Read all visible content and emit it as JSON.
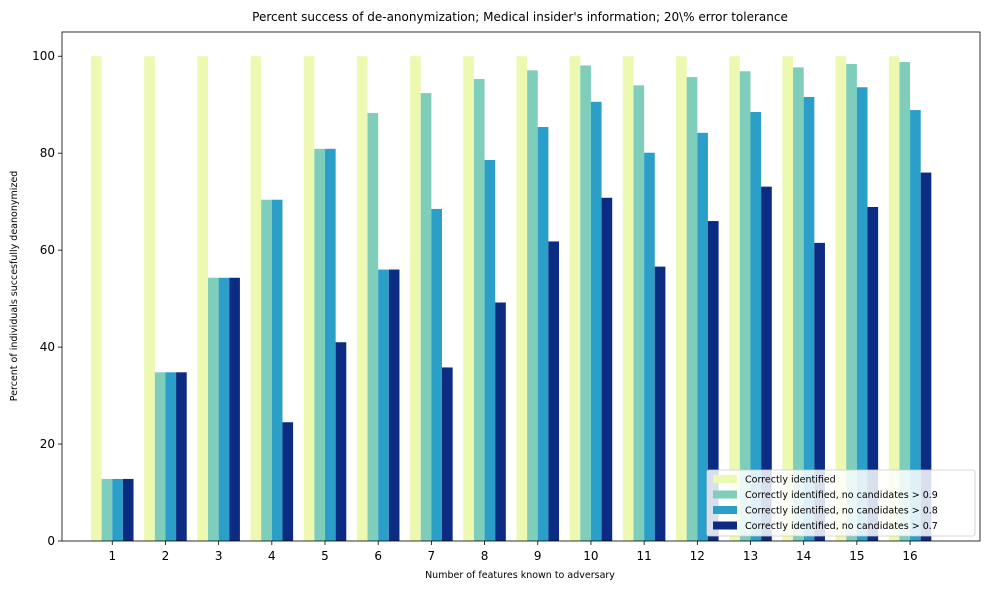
{
  "chart_data": {
    "type": "bar",
    "title": "Percent success of de-anonymization; Medical insider's information; 20\\% error tolerance",
    "xlabel": "Number of features known to adversary",
    "ylabel": "Percent of individuals succesfully deanonymized",
    "ylim": [
      0,
      105
    ],
    "yticks": [
      0,
      20,
      40,
      60,
      80,
      100
    ],
    "categories": [
      "1",
      "2",
      "3",
      "4",
      "5",
      "6",
      "7",
      "8",
      "9",
      "10",
      "11",
      "12",
      "13",
      "14",
      "15",
      "16"
    ],
    "grid": false,
    "legend_position": "bottom-right",
    "series": [
      {
        "name": "Correctly identified",
        "color": "#edf8b1",
        "values": [
          100,
          100,
          100,
          100,
          100,
          100,
          100,
          100,
          100,
          100,
          100,
          100,
          100,
          100,
          100,
          100
        ]
      },
      {
        "name": "Correctly identified, no candidates > 0.9",
        "color": "#7fcdbb",
        "values": [
          12.8,
          34.8,
          54.3,
          70.4,
          80.9,
          88.3,
          92.4,
          95.3,
          97.1,
          98.1,
          94.0,
          95.7,
          96.9,
          97.7,
          98.4,
          98.8
        ]
      },
      {
        "name": "Correctly identified, no candidates > 0.8",
        "color": "#2c9fc9",
        "values": [
          12.8,
          34.8,
          54.3,
          70.4,
          80.9,
          56.0,
          68.5,
          78.6,
          85.4,
          90.6,
          80.1,
          84.2,
          88.5,
          91.6,
          93.6,
          88.9
        ]
      },
      {
        "name": "Correctly identified, no candidates > 0.7",
        "color": "#0c2c84",
        "values": [
          12.8,
          34.8,
          54.3,
          24.5,
          41.0,
          56.0,
          35.8,
          49.2,
          61.8,
          70.8,
          56.6,
          66.0,
          73.1,
          61.5,
          68.9,
          76.0
        ]
      }
    ]
  }
}
